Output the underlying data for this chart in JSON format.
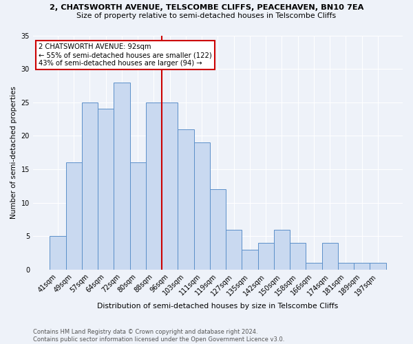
{
  "title1": "2, CHATSWORTH AVENUE, TELSCOMBE CLIFFS, PEACEHAVEN, BN10 7EA",
  "title2": "Size of property relative to semi-detached houses in Telscombe Cliffs",
  "xlabel": "Distribution of semi-detached houses by size in Telscombe Cliffs",
  "ylabel": "Number of semi-detached properties",
  "footnote1": "Contains HM Land Registry data © Crown copyright and database right 2024.",
  "footnote2": "Contains public sector information licensed under the Open Government Licence v3.0.",
  "categories": [
    "41sqm",
    "49sqm",
    "57sqm",
    "64sqm",
    "72sqm",
    "80sqm",
    "88sqm",
    "96sqm",
    "103sqm",
    "111sqm",
    "119sqm",
    "127sqm",
    "135sqm",
    "142sqm",
    "150sqm",
    "158sqm",
    "166sqm",
    "174sqm",
    "181sqm",
    "189sqm",
    "197sqm"
  ],
  "values": [
    5,
    16,
    25,
    24,
    28,
    16,
    25,
    25,
    21,
    19,
    12,
    6,
    3,
    4,
    6,
    4,
    1,
    4,
    1,
    1,
    1
  ],
  "bar_color": "#c9d9f0",
  "bar_edge_color": "#5b8fc9",
  "reference_line_x": 7,
  "annotation_title": "2 CHATSWORTH AVENUE: 92sqm",
  "annotation_line1": "← 55% of semi-detached houses are smaller (122)",
  "annotation_line2": "43% of semi-detached houses are larger (94) →",
  "annotation_box_color": "#ffffff",
  "annotation_box_edge": "#cc0000",
  "ref_line_color": "#cc0000",
  "background_color": "#eef2f9",
  "ylim": [
    0,
    35
  ],
  "yticks": [
    0,
    5,
    10,
    15,
    20,
    25,
    30,
    35
  ]
}
